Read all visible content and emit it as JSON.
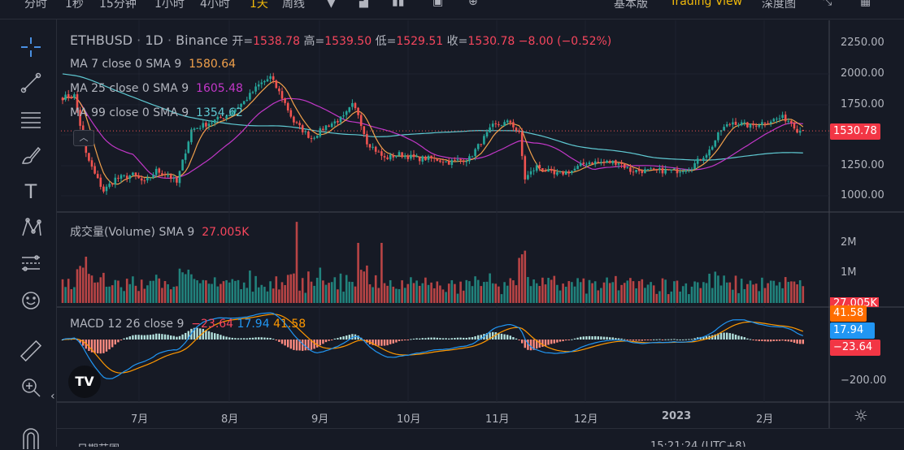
{
  "topbar": {
    "intervals": [
      "分时",
      "1秒",
      "15分钟",
      "1小时",
      "4小时",
      "1天",
      "周线"
    ],
    "active_interval": "1天",
    "views": [
      "基本版",
      "Trading View",
      "深度图"
    ],
    "active_view": "Trading View"
  },
  "symbol": {
    "name": "ETHBUSD",
    "interval": "1D",
    "exchange": "Binance",
    "open_label": "开=",
    "open": "1538.78",
    "high_label": "高=",
    "high": "1539.50",
    "low_label": "低=",
    "low": "1529.51",
    "close_label": "收=",
    "close": "1530.78",
    "change": "−8.00 (−0.52%)"
  },
  "indicators": {
    "ma7": {
      "label": "MA 7 close 0 SMA 9",
      "value": "1580.64",
      "color": "#f0a04b"
    },
    "ma25": {
      "label": "MA 25 close 0 SMA 9",
      "value": "1605.48",
      "color": "#c237c8"
    },
    "ma99": {
      "label": "MA 99 close 0 SMA 9",
      "value": "1354.62",
      "color": "#5fc9d2"
    },
    "volume": {
      "label": "成交量(Volume) SMA 9",
      "value": "27.005K"
    },
    "macd": {
      "label": "MACD 12 26 close 9",
      "hist": "−23.64",
      "macd": "17.94",
      "signal": "41.58"
    }
  },
  "price_axis": [
    "2250.00",
    "2000.00",
    "1750.00",
    "1500.00",
    "1250.00",
    "1000.00"
  ],
  "last_price_tag": "1530.78",
  "volume_axis": [
    "2M",
    "1M"
  ],
  "volume_tag": "27.005K",
  "macd_axis": [
    "−200.00"
  ],
  "macd_tags": {
    "signal": "41.58",
    "macd": "17.94",
    "hist": "−23.64"
  },
  "time_axis": [
    "7月",
    "8月",
    "9月",
    "10月",
    "11月",
    "12月",
    "2023",
    "2月"
  ],
  "bottombar": {
    "date_range": "日期范围",
    "clock": "15:21:24 (UTC+8)"
  },
  "colors": {
    "up": "#26a69a",
    "down": "#ef5350",
    "bg": "#161a25",
    "accent": "#f0b90b"
  },
  "chart_data": {
    "type": "candlestick",
    "title": "ETHBUSD 1D Binance",
    "start_date": "2022-06-05",
    "close_keypoints": {
      "day": [
        0,
        4,
        8,
        11,
        14,
        18,
        24,
        28,
        32,
        36,
        39,
        44,
        51,
        57,
        62,
        67,
        71,
        75,
        79,
        85,
        90,
        96,
        99,
        101,
        104,
        110,
        115,
        121,
        126,
        132,
        139,
        143,
        147,
        153,
        156,
        158,
        162,
        168,
        174,
        179,
        185,
        190,
        194,
        199,
        204,
        210,
        215,
        221,
        225,
        229,
        235,
        240,
        246,
        249,
        251,
        253
      ],
      "price": [
        1805,
        1820,
        1340,
        1175,
        1040,
        1140,
        1170,
        1105,
        1205,
        1170,
        1105,
        1540,
        1605,
        1670,
        1770,
        1905,
        1970,
        1805,
        1605,
        1470,
        1570,
        1640,
        1740,
        1670,
        1440,
        1305,
        1340,
        1305,
        1305,
        1275,
        1305,
        1440,
        1570,
        1605,
        1505,
        1140,
        1240,
        1170,
        1205,
        1275,
        1275,
        1275,
        1205,
        1205,
        1205,
        1205,
        1240,
        1370,
        1540,
        1605,
        1570,
        1605,
        1640,
        1605,
        1540,
        1530.78
      ]
    },
    "last_candle": {
      "open": 1538.78,
      "high": 1539.5,
      "low": 1529.51,
      "close": 1530.78
    },
    "price_range": [
      900,
      2300
    ],
    "volume_range_M": [
      0,
      3
    ],
    "ma_periods": [
      7,
      25,
      99
    ],
    "macd_params": [
      12,
      26,
      9
    ]
  }
}
